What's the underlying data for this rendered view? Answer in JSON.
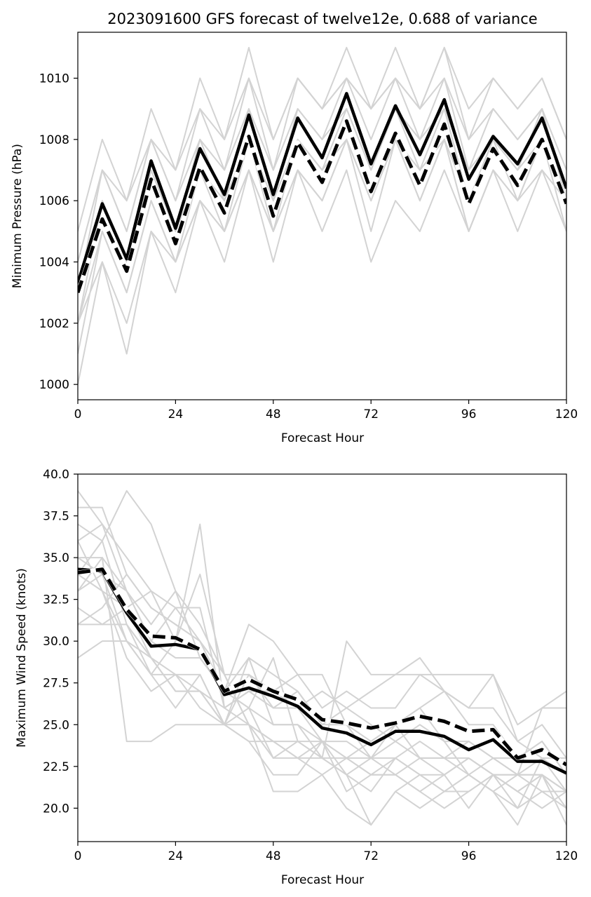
{
  "chart_data": [
    {
      "type": "line",
      "title": "2023091600 GFS forecast of twelve12e, 0.688 of variance",
      "xlabel": "Forecast Hour",
      "ylabel": "Minimum Pressure (hPa)",
      "xlim": [
        0,
        120
      ],
      "ylim": [
        999.5,
        1011.5
      ],
      "xticks": [
        0,
        24,
        48,
        72,
        96,
        120
      ],
      "yticks": [
        1000,
        1002,
        1004,
        1006,
        1008,
        1010
      ],
      "grid": false,
      "x": [
        0,
        6,
        12,
        18,
        24,
        30,
        36,
        42,
        48,
        54,
        60,
        66,
        72,
        78,
        84,
        90,
        96,
        102,
        108,
        114,
        120
      ],
      "series": [
        {
          "style": "solid-black",
          "values": [
            1003.3,
            1005.9,
            1004.1,
            1007.3,
            1005.1,
            1007.7,
            1006.2,
            1008.8,
            1006.2,
            1008.7,
            1007.4,
            1009.5,
            1007.2,
            1009.1,
            1007.5,
            1009.3,
            1006.7,
            1008.1,
            1007.2,
            1008.7,
            1006.4
          ]
        },
        {
          "style": "dashed-black",
          "values": [
            1003.0,
            1005.4,
            1003.7,
            1006.7,
            1004.6,
            1007.1,
            1005.6,
            1008.1,
            1005.5,
            1007.9,
            1006.6,
            1008.6,
            1006.3,
            1008.2,
            1006.5,
            1008.5,
            1005.9,
            1007.7,
            1006.5,
            1008.0,
            1005.9
          ]
        }
      ],
      "members": [
        [
          1005,
          1008,
          1006,
          1009,
          1007,
          1010,
          1008,
          1011,
          1008,
          1010,
          1009,
          1011,
          1009,
          1011,
          1009,
          1011,
          1009,
          1010,
          1009,
          1010,
          1008
        ],
        [
          1004,
          1007,
          1005,
          1008,
          1006,
          1009,
          1007,
          1010,
          1007,
          1010,
          1009,
          1010,
          1009,
          1010,
          1009,
          1011,
          1008,
          1009,
          1008,
          1009,
          1007
        ],
        [
          1003,
          1007,
          1005,
          1008,
          1006,
          1008,
          1007,
          1009,
          1007,
          1009,
          1008,
          1010,
          1008,
          1010,
          1008,
          1010,
          1007,
          1009,
          1008,
          1009,
          1006
        ],
        [
          1003,
          1006,
          1004,
          1007,
          1005,
          1008,
          1006,
          1009,
          1006,
          1009,
          1008,
          1009,
          1007,
          1009,
          1008,
          1009,
          1007,
          1008,
          1007,
          1009,
          1006
        ],
        [
          1002,
          1006,
          1004,
          1007,
          1005,
          1007,
          1006,
          1008,
          1006,
          1008,
          1007,
          1009,
          1007,
          1009,
          1007,
          1009,
          1006,
          1008,
          1007,
          1008,
          1006
        ],
        [
          1002,
          1005,
          1003,
          1006,
          1004,
          1007,
          1005,
          1008,
          1005,
          1008,
          1007,
          1008,
          1006,
          1008,
          1007,
          1008,
          1006,
          1008,
          1006,
          1008,
          1005
        ],
        [
          1001,
          1005,
          1003,
          1006,
          1004,
          1006,
          1005,
          1007,
          1005,
          1007,
          1006,
          1008,
          1006,
          1008,
          1006,
          1008,
          1005,
          1007,
          1006,
          1007,
          1005
        ],
        [
          1000,
          1004,
          1002,
          1005,
          1003,
          1006,
          1004,
          1007,
          1004,
          1007,
          1005,
          1007,
          1004,
          1006,
          1005,
          1007,
          1005,
          1007,
          1005,
          1007,
          1006
        ],
        [
          1002,
          1004,
          1001,
          1005,
          1004,
          1006,
          1005,
          1007,
          1005,
          1007,
          1006,
          1008,
          1005,
          1008,
          1006,
          1008,
          1005,
          1007,
          1006,
          1008,
          1006
        ],
        [
          1004,
          1007,
          1006,
          1008,
          1007,
          1009,
          1008,
          1010,
          1008,
          1010,
          1009,
          1010,
          1009,
          1010,
          1009,
          1010,
          1008,
          1010,
          1009,
          1010,
          1008
        ]
      ]
    },
    {
      "type": "line",
      "xlabel": "Forecast Hour",
      "ylabel": "Maximum Wind Speed (knots)",
      "xlim": [
        0,
        120
      ],
      "ylim": [
        18,
        40
      ],
      "xticks": [
        0,
        24,
        48,
        72,
        96,
        120
      ],
      "yticks": [
        20.0,
        22.5,
        25.0,
        27.5,
        30.0,
        32.5,
        35.0,
        37.5,
        40.0
      ],
      "grid": false,
      "x": [
        0,
        6,
        12,
        18,
        24,
        30,
        36,
        42,
        48,
        54,
        60,
        66,
        72,
        78,
        84,
        90,
        96,
        102,
        108,
        114,
        120
      ],
      "series": [
        {
          "style": "solid-black",
          "values": [
            34.3,
            34.2,
            31.7,
            29.7,
            29.8,
            29.5,
            26.8,
            27.2,
            26.7,
            26.1,
            24.8,
            24.5,
            23.8,
            24.6,
            24.6,
            24.3,
            23.5,
            24.1,
            22.8,
            22.8,
            22.1
          ]
        },
        {
          "style": "dashed-black",
          "values": [
            34.1,
            34.3,
            31.9,
            30.3,
            30.2,
            29.5,
            27.0,
            27.7,
            27.0,
            26.5,
            25.3,
            25.1,
            24.8,
            25.1,
            25.5,
            25.2,
            24.6,
            24.7,
            23.0,
            23.5,
            22.6
          ]
        }
      ],
      "members": [
        [
          39,
          37,
          33,
          30,
          29,
          29,
          27,
          31,
          30,
          28,
          26,
          27,
          26,
          26,
          28,
          27,
          26,
          26,
          24,
          25,
          23
        ],
        [
          38,
          38,
          34,
          32,
          31,
          30,
          27,
          29,
          28,
          27,
          25,
          25,
          24,
          25,
          26,
          27,
          25,
          25,
          23,
          24,
          22
        ],
        [
          37,
          36,
          39,
          37,
          33,
          31,
          28,
          28,
          27,
          26,
          27,
          26,
          25,
          24,
          25,
          24,
          24,
          23,
          22,
          26,
          27
        ],
        [
          36,
          37,
          35,
          33,
          30,
          37,
          26,
          27,
          26,
          26,
          24,
          24,
          23,
          25,
          23,
          22,
          23,
          22,
          21,
          22,
          20
        ],
        [
          35,
          35,
          33,
          31,
          33,
          29,
          27,
          26,
          25,
          25,
          24,
          23,
          22,
          23,
          24,
          23,
          22,
          21,
          20,
          21,
          20
        ],
        [
          35,
          34,
          30,
          28,
          30,
          34,
          28,
          25,
          24,
          23,
          24,
          22,
          21,
          23,
          22,
          21,
          21,
          22,
          20,
          23,
          21
        ],
        [
          34,
          33,
          29,
          27,
          28,
          28,
          25,
          24,
          24,
          24,
          23,
          23,
          23,
          22,
          21,
          22,
          23,
          22,
          21,
          22,
          21
        ],
        [
          33,
          35,
          24,
          24,
          25,
          25,
          25,
          26,
          23,
          24,
          23,
          22,
          19,
          21,
          22,
          21,
          22,
          21,
          19,
          22,
          19
        ],
        [
          34,
          36,
          31,
          28,
          26,
          28,
          25,
          29,
          25,
          25,
          23,
          30,
          28,
          28,
          29,
          27,
          26,
          28,
          24,
          23,
          23
        ],
        [
          32,
          31,
          31,
          29,
          28,
          27,
          25,
          25,
          24,
          23,
          22,
          23,
          24,
          25,
          26,
          24,
          22,
          23,
          23,
          24,
          22
        ],
        [
          29,
          30,
          30,
          29,
          27,
          27,
          25,
          28,
          26,
          27,
          25,
          26,
          27,
          28,
          28,
          28,
          28,
          28,
          25,
          26,
          26
        ],
        [
          31,
          31,
          32,
          33,
          32,
          32,
          26,
          27,
          27,
          28,
          28,
          25,
          23,
          23,
          22,
          22,
          20,
          22,
          22,
          22,
          21
        ],
        [
          33,
          34,
          33,
          30,
          32,
          30,
          27,
          26,
          29,
          24,
          24,
          23,
          22,
          22,
          21,
          20,
          21,
          22,
          21,
          20,
          21
        ],
        [
          31,
          32,
          34,
          32,
          31,
          30,
          28,
          25,
          23,
          23,
          23,
          22,
          23,
          24,
          23,
          23,
          23,
          22,
          22,
          22,
          21
        ],
        [
          34,
          33,
          30,
          28,
          28,
          26,
          25,
          24,
          22,
          22,
          24,
          21,
          22,
          22,
          23,
          23,
          24,
          23,
          22,
          23,
          22
        ],
        [
          36,
          33,
          32,
          29,
          27,
          27,
          26,
          25,
          21,
          21,
          22,
          20,
          19,
          21,
          20,
          21,
          22,
          21,
          22,
          21,
          21
        ]
      ]
    }
  ]
}
